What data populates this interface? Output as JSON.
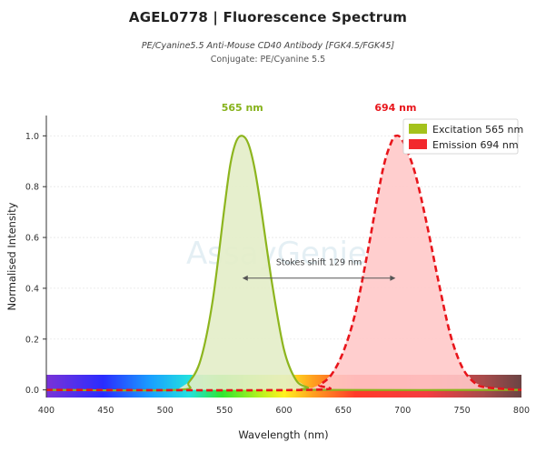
{
  "header": {
    "title": "AGEL0778  |  Fluorescence Spectrum",
    "subtitle": "PE/Cyanine5.5 Anti-Mouse CD40 Antibody [FGK4.5/FGK45]",
    "conjugate": "Conjugate: PE/Cyanine 5.5"
  },
  "watermark": "AssayGenie",
  "colors": {
    "excitation_line": "#8db51e",
    "excitation_fill": "#e3edc8",
    "emission_line": "#e8151b",
    "emission_fill": "#ffc9c9"
  },
  "chart_data": {
    "type": "area",
    "xlabel": "Wavelength (nm)",
    "ylabel": "Normalised Intensity",
    "xlim": [
      400,
      800
    ],
    "ylim": [
      -0.03,
      1.08
    ],
    "xticks": [
      400,
      450,
      500,
      550,
      600,
      650,
      700,
      750,
      800
    ],
    "yticks": [
      0.0,
      0.2,
      0.4,
      0.6,
      0.8,
      1.0
    ],
    "grid": true,
    "legend_position": "top-right",
    "series": [
      {
        "name": "Excitation  565 nm",
        "peak_label": "565 nm",
        "peak": 565,
        "style": "solid",
        "x": [
          400,
          510,
          520,
          530,
          540,
          550,
          555,
          560,
          565,
          570,
          575,
          580,
          590,
          600,
          610,
          620,
          630,
          800
        ],
        "y": [
          0,
          0.0,
          0.03,
          0.12,
          0.35,
          0.72,
          0.89,
          0.98,
          1.0,
          0.97,
          0.88,
          0.74,
          0.42,
          0.16,
          0.04,
          0.01,
          0.0,
          0
        ]
      },
      {
        "name": "Emission  694 nm",
        "peak_label": "694 nm",
        "peak": 694,
        "style": "dashed",
        "x": [
          400,
          620,
          630,
          640,
          650,
          660,
          670,
          680,
          685,
          690,
          694,
          700,
          710,
          720,
          730,
          740,
          750,
          760,
          770,
          800
        ],
        "y": [
          0,
          0.0,
          0.02,
          0.06,
          0.15,
          0.3,
          0.53,
          0.79,
          0.9,
          0.97,
          1.0,
          0.98,
          0.86,
          0.66,
          0.43,
          0.22,
          0.09,
          0.03,
          0.01,
          0
        ]
      }
    ],
    "annotation": {
      "text": "Stokes shift  129 nm",
      "from": 565,
      "to": 694,
      "y": 0.44
    }
  }
}
